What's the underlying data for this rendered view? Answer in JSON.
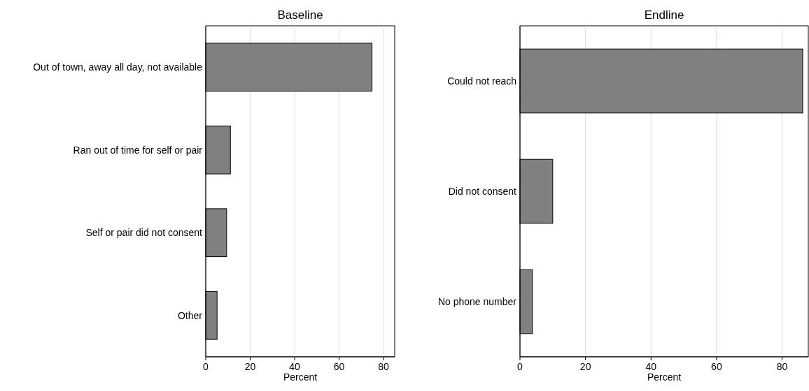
{
  "chart_data": [
    {
      "type": "bar",
      "title": "Baseline",
      "orientation": "horizontal",
      "xlabel": "Percent",
      "categories": [
        "Out of town, away all day, not available",
        "Ran out of time for self or pair",
        "Self or pair did not consent",
        "Other"
      ],
      "values": [
        74.8,
        11.1,
        9.4,
        5.1
      ],
      "color": "#808080",
      "xlim": [
        0,
        85
      ],
      "xticks": [
        0,
        20,
        40,
        60,
        80
      ],
      "grid": "x"
    },
    {
      "type": "bar",
      "title": "Endline",
      "orientation": "horizontal",
      "xlabel": "Percent",
      "categories": [
        "Could not reach",
        "Did not consent",
        "No phone number"
      ],
      "values": [
        86.3,
        10.0,
        3.8
      ],
      "color": "#808080",
      "xlim": [
        0,
        88
      ],
      "xticks": [
        0,
        20,
        40,
        60,
        80
      ],
      "grid": "x"
    }
  ]
}
